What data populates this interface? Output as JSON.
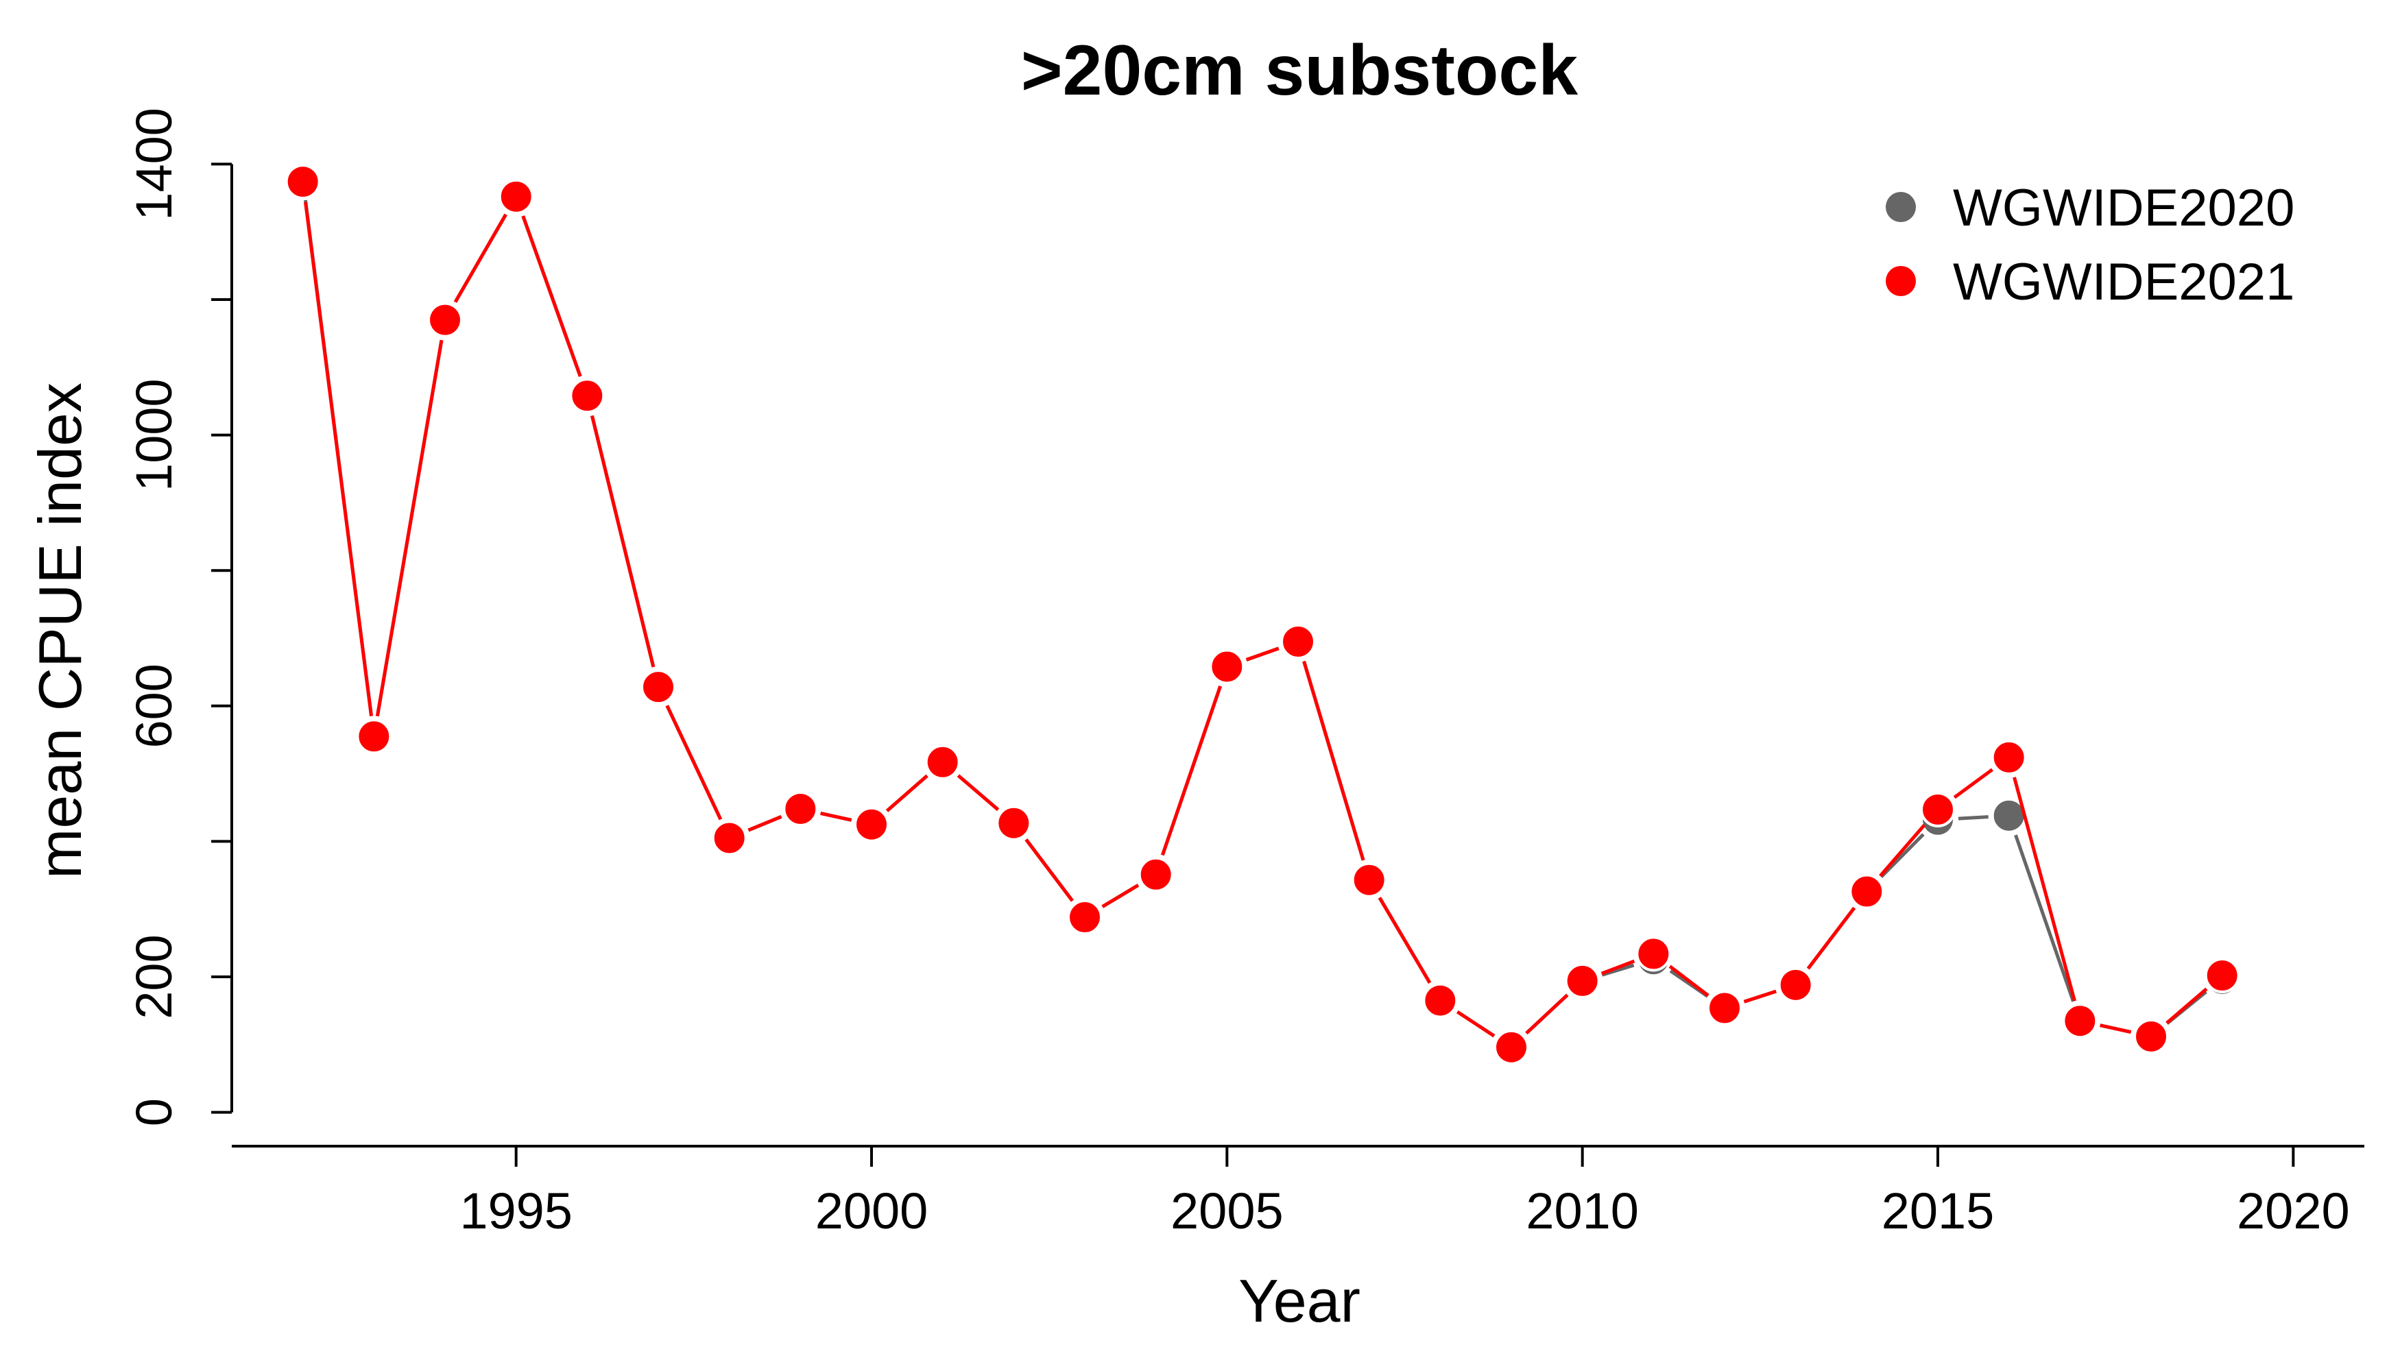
{
  "chart_data": {
    "type": "line",
    "title": ">20cm substock",
    "xlabel": "Year",
    "ylabel": "mean CPUE index",
    "xlim": [
      1991,
      2021
    ],
    "ylim": [
      -50,
      1450
    ],
    "x_ticks": [
      1995,
      2000,
      2005,
      2010,
      2015,
      2020
    ],
    "y_ticks": [
      0,
      200,
      600,
      1000,
      1400
    ],
    "y_minor_ticks": [
      400,
      800,
      1200
    ],
    "grid": false,
    "legend_position": "top-right",
    "colors": {
      "WGWIDE2020": "#666666",
      "WGWIDE2021": "#ff0000"
    },
    "series": [
      {
        "name": "WGWIDE2020",
        "x": [
          1992,
          1993,
          1994,
          1995,
          1996,
          1997,
          1998,
          1999,
          2000,
          2001,
          2002,
          2003,
          2004,
          2005,
          2006,
          2007,
          2008,
          2009,
          2010,
          2011,
          2012,
          2013,
          2014,
          2015,
          2016,
          2017,
          2018,
          2019
        ],
        "y": [
          1377,
          555,
          1170,
          1352,
          1058,
          628,
          405,
          448,
          425,
          517,
          427,
          288,
          351,
          658,
          695,
          343,
          165,
          96,
          194,
          226,
          154,
          188,
          326,
          432,
          438,
          135,
          112,
          197
        ]
      },
      {
        "name": "WGWIDE2021",
        "x": [
          1992,
          1993,
          1994,
          1995,
          1996,
          1997,
          1998,
          1999,
          2000,
          2001,
          2002,
          2003,
          2004,
          2005,
          2006,
          2007,
          2008,
          2009,
          2010,
          2011,
          2012,
          2013,
          2014,
          2015,
          2016,
          2017,
          2018,
          2019
        ],
        "y": [
          1374,
          555,
          1170,
          1352,
          1058,
          628,
          405,
          448,
          425,
          517,
          427,
          288,
          351,
          658,
          695,
          343,
          165,
          96,
          194,
          234,
          154,
          188,
          326,
          447,
          524,
          135,
          112,
          202
        ]
      }
    ]
  }
}
